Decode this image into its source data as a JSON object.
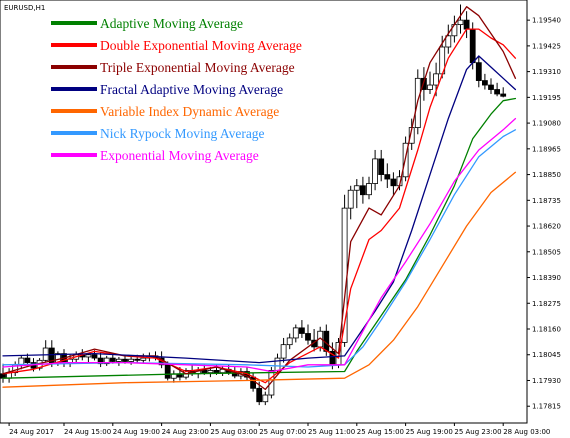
{
  "symbol_label": "EURUSD,H1",
  "chart_data": {
    "type": "candlestick",
    "symbol": "EURUSD,H1",
    "ylim": [
      1.1774,
      1.1963
    ],
    "y_ticks": [
      "1.19540",
      "1.19425",
      "1.19310",
      "1.19195",
      "1.19080",
      "1.18965",
      "1.18850",
      "1.18735",
      "1.18620",
      "1.18505",
      "1.18390",
      "1.18275",
      "1.18160",
      "1.18045",
      "1.17930",
      "1.17815"
    ],
    "x_ticks": [
      "24 Aug 2017",
      "24 Aug 15:00",
      "24 Aug 19:00",
      "24 Aug 23:00",
      "25 Aug 03:00",
      "25 Aug 07:00",
      "25 Aug 11:00",
      "25 Aug 15:00",
      "25 Aug 19:00",
      "25 Aug 23:00",
      "28 Aug 03:00"
    ],
    "x_tick_index": [
      1,
      10,
      18,
      26,
      34,
      42,
      50,
      58,
      66,
      74,
      82
    ],
    "candles": [
      {
        "o": 1.1796,
        "h": 1.18005,
        "l": 1.1792,
        "c": 1.1794
      },
      {
        "o": 1.1794,
        "h": 1.17985,
        "l": 1.1792,
        "c": 1.17965
      },
      {
        "o": 1.17965,
        "h": 1.18015,
        "l": 1.1795,
        "c": 1.18
      },
      {
        "o": 1.18,
        "h": 1.1804,
        "l": 1.1798,
        "c": 1.1803
      },
      {
        "o": 1.1803,
        "h": 1.1805,
        "l": 1.1799,
        "c": 1.1801
      },
      {
        "o": 1.1801,
        "h": 1.1803,
        "l": 1.1797,
        "c": 1.17985
      },
      {
        "o": 1.17985,
        "h": 1.1803,
        "l": 1.17975,
        "c": 1.1802
      },
      {
        "o": 1.1802,
        "h": 1.1811,
        "l": 1.1801,
        "c": 1.18075
      },
      {
        "o": 1.18075,
        "h": 1.1811,
        "l": 1.1799,
        "c": 1.1801
      },
      {
        "o": 1.1801,
        "h": 1.1806,
        "l": 1.17995,
        "c": 1.1805
      },
      {
        "o": 1.1805,
        "h": 1.1807,
        "l": 1.1799,
        "c": 1.1801
      },
      {
        "o": 1.1801,
        "h": 1.18045,
        "l": 1.1799,
        "c": 1.18025
      },
      {
        "o": 1.18025,
        "h": 1.1806,
        "l": 1.1801,
        "c": 1.18045
      },
      {
        "o": 1.18045,
        "h": 1.1807,
        "l": 1.1802,
        "c": 1.18035
      },
      {
        "o": 1.18035,
        "h": 1.18055,
        "l": 1.1801,
        "c": 1.18045
      },
      {
        "o": 1.18045,
        "h": 1.18065,
        "l": 1.1802,
        "c": 1.1803
      },
      {
        "o": 1.1803,
        "h": 1.18055,
        "l": 1.1799,
        "c": 1.18005
      },
      {
        "o": 1.18005,
        "h": 1.1804,
        "l": 1.17995,
        "c": 1.1803
      },
      {
        "o": 1.1803,
        "h": 1.18045,
        "l": 1.18005,
        "c": 1.18015
      },
      {
        "o": 1.18015,
        "h": 1.18035,
        "l": 1.17995,
        "c": 1.18025
      },
      {
        "o": 1.18025,
        "h": 1.18045,
        "l": 1.18005,
        "c": 1.18015
      },
      {
        "o": 1.18015,
        "h": 1.1804,
        "l": 1.18,
        "c": 1.18025
      },
      {
        "o": 1.18025,
        "h": 1.18045,
        "l": 1.1801,
        "c": 1.1802
      },
      {
        "o": 1.1802,
        "h": 1.1805,
        "l": 1.18005,
        "c": 1.1803
      },
      {
        "o": 1.1803,
        "h": 1.18055,
        "l": 1.18015,
        "c": 1.1804
      },
      {
        "o": 1.1804,
        "h": 1.1806,
        "l": 1.1802,
        "c": 1.1803
      },
      {
        "o": 1.1803,
        "h": 1.1806,
        "l": 1.17985,
        "c": 1.18
      },
      {
        "o": 1.18,
        "h": 1.18015,
        "l": 1.1793,
        "c": 1.1794
      },
      {
        "o": 1.1794,
        "h": 1.17975,
        "l": 1.1792,
        "c": 1.1796
      },
      {
        "o": 1.1796,
        "h": 1.1799,
        "l": 1.1793,
        "c": 1.17945
      },
      {
        "o": 1.17945,
        "h": 1.17985,
        "l": 1.17935,
        "c": 1.17975
      },
      {
        "o": 1.17975,
        "h": 1.18,
        "l": 1.1795,
        "c": 1.1796
      },
      {
        "o": 1.1796,
        "h": 1.1799,
        "l": 1.1794,
        "c": 1.17975
      },
      {
        "o": 1.17975,
        "h": 1.18,
        "l": 1.17955,
        "c": 1.17965
      },
      {
        "o": 1.17965,
        "h": 1.1799,
        "l": 1.17945,
        "c": 1.17975
      },
      {
        "o": 1.17975,
        "h": 1.18,
        "l": 1.17955,
        "c": 1.17965
      },
      {
        "o": 1.17965,
        "h": 1.17995,
        "l": 1.1795,
        "c": 1.1798
      },
      {
        "o": 1.1798,
        "h": 1.18,
        "l": 1.17955,
        "c": 1.17965
      },
      {
        "o": 1.17965,
        "h": 1.1799,
        "l": 1.1794,
        "c": 1.1795
      },
      {
        "o": 1.1795,
        "h": 1.17985,
        "l": 1.17935,
        "c": 1.1797
      },
      {
        "o": 1.1797,
        "h": 1.1799,
        "l": 1.1793,
        "c": 1.17945
      },
      {
        "o": 1.17945,
        "h": 1.17965,
        "l": 1.1788,
        "c": 1.17895
      },
      {
        "o": 1.17895,
        "h": 1.17925,
        "l": 1.1782,
        "c": 1.17835
      },
      {
        "o": 1.17835,
        "h": 1.1788,
        "l": 1.1782,
        "c": 1.17865
      },
      {
        "o": 1.17865,
        "h": 1.1799,
        "l": 1.1785,
        "c": 1.17975
      },
      {
        "o": 1.17975,
        "h": 1.1805,
        "l": 1.1796,
        "c": 1.1803
      },
      {
        "o": 1.1803,
        "h": 1.1812,
        "l": 1.1801,
        "c": 1.1809
      },
      {
        "o": 1.1809,
        "h": 1.1814,
        "l": 1.1807,
        "c": 1.1812
      },
      {
        "o": 1.1812,
        "h": 1.1818,
        "l": 1.181,
        "c": 1.18165
      },
      {
        "o": 1.18165,
        "h": 1.182,
        "l": 1.1812,
        "c": 1.1814
      },
      {
        "o": 1.1814,
        "h": 1.1818,
        "l": 1.1809,
        "c": 1.1811
      },
      {
        "o": 1.1811,
        "h": 1.1816,
        "l": 1.1806,
        "c": 1.1808
      },
      {
        "o": 1.1808,
        "h": 1.1817,
        "l": 1.1806,
        "c": 1.1815
      },
      {
        "o": 1.1815,
        "h": 1.1818,
        "l": 1.1804,
        "c": 1.1806
      },
      {
        "o": 1.1806,
        "h": 1.181,
        "l": 1.1798,
        "c": 1.18
      },
      {
        "o": 1.18,
        "h": 1.1812,
        "l": 1.17985,
        "c": 1.181
      },
      {
        "o": 1.181,
        "h": 1.1876,
        "l": 1.1808,
        "c": 1.187
      },
      {
        "o": 1.187,
        "h": 1.188,
        "l": 1.1865,
        "c": 1.1878
      },
      {
        "o": 1.1878,
        "h": 1.1883,
        "l": 1.187,
        "c": 1.188
      },
      {
        "o": 1.188,
        "h": 1.1884,
        "l": 1.1872,
        "c": 1.1876
      },
      {
        "o": 1.1876,
        "h": 1.1884,
        "l": 1.1874,
        "c": 1.1881
      },
      {
        "o": 1.1881,
        "h": 1.1896,
        "l": 1.1878,
        "c": 1.1892
      },
      {
        "o": 1.1892,
        "h": 1.1896,
        "l": 1.1882,
        "c": 1.1885
      },
      {
        "o": 1.1885,
        "h": 1.189,
        "l": 1.1879,
        "c": 1.1883
      },
      {
        "o": 1.1883,
        "h": 1.1886,
        "l": 1.1876,
        "c": 1.188
      },
      {
        "o": 1.188,
        "h": 1.1887,
        "l": 1.1878,
        "c": 1.1884
      },
      {
        "o": 1.1884,
        "h": 1.1902,
        "l": 1.1882,
        "c": 1.1899
      },
      {
        "o": 1.1899,
        "h": 1.191,
        "l": 1.1896,
        "c": 1.1906
      },
      {
        "o": 1.1906,
        "h": 1.1932,
        "l": 1.1903,
        "c": 1.1928
      },
      {
        "o": 1.1928,
        "h": 1.1933,
        "l": 1.1918,
        "c": 1.1923
      },
      {
        "o": 1.1923,
        "h": 1.1931,
        "l": 1.1921,
        "c": 1.1925
      },
      {
        "o": 1.1925,
        "h": 1.1935,
        "l": 1.192,
        "c": 1.193
      },
      {
        "o": 1.193,
        "h": 1.1947,
        "l": 1.1928,
        "c": 1.1942
      },
      {
        "o": 1.1942,
        "h": 1.1952,
        "l": 1.1939,
        "c": 1.1947
      },
      {
        "o": 1.1947,
        "h": 1.1956,
        "l": 1.1944,
        "c": 1.1952
      },
      {
        "o": 1.1952,
        "h": 1.1961,
        "l": 1.1948,
        "c": 1.1954
      },
      {
        "o": 1.1954,
        "h": 1.1958,
        "l": 1.1946,
        "c": 1.195
      },
      {
        "o": 1.195,
        "h": 1.1953,
        "l": 1.1932,
        "c": 1.1935
      },
      {
        "o": 1.1935,
        "h": 1.1938,
        "l": 1.1924,
        "c": 1.1927
      },
      {
        "o": 1.1927,
        "h": 1.193,
        "l": 1.1923,
        "c": 1.1925
      },
      {
        "o": 1.1925,
        "h": 1.1928,
        "l": 1.1921,
        "c": 1.1923
      },
      {
        "o": 1.1923,
        "h": 1.1926,
        "l": 1.192,
        "c": 1.1921
      },
      {
        "o": 1.1921,
        "h": 1.1924,
        "l": 1.19195,
        "c": 1.192
      }
    ],
    "series": [
      {
        "name": "Adaptive Moving Average",
        "color": "#008000",
        "width": 1.3,
        "points": [
          [
            0,
            1.1794
          ],
          [
            30,
            1.1796
          ],
          [
            56,
            1.1797
          ],
          [
            58,
            1.1806
          ],
          [
            62,
            1.1822
          ],
          [
            66,
            1.1838
          ],
          [
            70,
            1.1858
          ],
          [
            74,
            1.188
          ],
          [
            77,
            1.1901
          ],
          [
            80,
            1.1912
          ],
          [
            82,
            1.1918
          ],
          [
            84,
            1.1919
          ]
        ]
      },
      {
        "name": "Double Exponential Moving Average",
        "color": "#ff0000",
        "width": 1.3,
        "points": [
          [
            0,
            1.1796
          ],
          [
            5,
            1.1798
          ],
          [
            10,
            1.1802
          ],
          [
            15,
            1.1806
          ],
          [
            20,
            1.1804
          ],
          [
            25,
            1.1803
          ],
          [
            30,
            1.1797
          ],
          [
            35,
            1.1799
          ],
          [
            40,
            1.1796
          ],
          [
            43,
            1.1792
          ],
          [
            47,
            1.1801
          ],
          [
            52,
            1.1808
          ],
          [
            55,
            1.1803
          ],
          [
            57,
            1.1834
          ],
          [
            60,
            1.1856
          ],
          [
            62,
            1.186
          ],
          [
            65,
            1.187
          ],
          [
            68,
            1.1896
          ],
          [
            70,
            1.1915
          ],
          [
            73,
            1.1937
          ],
          [
            76,
            1.195
          ],
          [
            78,
            1.195
          ],
          [
            80,
            1.1946
          ],
          [
            82,
            1.1943
          ],
          [
            84,
            1.1937
          ]
        ]
      },
      {
        "name": "Triple Exponential Moving Average",
        "color": "#8b0000",
        "width": 1.3,
        "points": [
          [
            0,
            1.1796
          ],
          [
            5,
            1.18
          ],
          [
            10,
            1.1803
          ],
          [
            15,
            1.1807
          ],
          [
            20,
            1.1804
          ],
          [
            25,
            1.1804
          ],
          [
            30,
            1.1796
          ],
          [
            35,
            1.1799
          ],
          [
            40,
            1.1795
          ],
          [
            43,
            1.1789
          ],
          [
            47,
            1.1802
          ],
          [
            52,
            1.1812
          ],
          [
            55,
            1.1805
          ],
          [
            57,
            1.1855
          ],
          [
            60,
            1.187
          ],
          [
            62,
            1.1867
          ],
          [
            65,
            1.188
          ],
          [
            68,
            1.1918
          ],
          [
            70,
            1.1935
          ],
          [
            73,
            1.1948
          ],
          [
            76,
            1.196
          ],
          [
            78,
            1.1956
          ],
          [
            80,
            1.1948
          ],
          [
            82,
            1.194
          ],
          [
            84,
            1.1928
          ]
        ]
      },
      {
        "name": "Fractal Adaptive Moving Average",
        "color": "#000080",
        "width": 1.3,
        "points": [
          [
            0,
            1.1804
          ],
          [
            15,
            1.1805
          ],
          [
            30,
            1.1803
          ],
          [
            42,
            1.1801
          ],
          [
            50,
            1.1803
          ],
          [
            56,
            1.1804
          ],
          [
            58,
            1.1812
          ],
          [
            61,
            1.1824
          ],
          [
            64,
            1.1837
          ],
          [
            67,
            1.186
          ],
          [
            70,
            1.1885
          ],
          [
            73,
            1.191
          ],
          [
            76,
            1.1932
          ],
          [
            78,
            1.1938
          ],
          [
            80,
            1.1933
          ],
          [
            82,
            1.1928
          ],
          [
            84,
            1.1923
          ]
        ]
      },
      {
        "name": "Variable Index Dynamic Average",
        "color": "#ff6600",
        "width": 1.3,
        "points": [
          [
            0,
            1.179
          ],
          [
            20,
            1.1792
          ],
          [
            40,
            1.1793
          ],
          [
            56,
            1.1794
          ],
          [
            60,
            1.18
          ],
          [
            64,
            1.1811
          ],
          [
            68,
            1.1826
          ],
          [
            72,
            1.1844
          ],
          [
            76,
            1.1862
          ],
          [
            80,
            1.1877
          ],
          [
            84,
            1.1886
          ]
        ]
      },
      {
        "name": "Nick Rypock Moving Average",
        "color": "#3399ff",
        "width": 1.3,
        "points": [
          [
            0,
            1.18
          ],
          [
            20,
            1.1801
          ],
          [
            40,
            1.18
          ],
          [
            50,
            1.1799
          ],
          [
            56,
            1.18
          ],
          [
            59,
            1.1808
          ],
          [
            62,
            1.182
          ],
          [
            66,
            1.1837
          ],
          [
            70,
            1.1856
          ],
          [
            74,
            1.1876
          ],
          [
            78,
            1.1893
          ],
          [
            82,
            1.1902
          ],
          [
            84,
            1.1905
          ]
        ]
      },
      {
        "name": "Exponential Moving Average",
        "color": "#ff00ff",
        "width": 1.3,
        "points": [
          [
            0,
            1.1799
          ],
          [
            10,
            1.1801
          ],
          [
            20,
            1.1801
          ],
          [
            30,
            1.18
          ],
          [
            40,
            1.1799
          ],
          [
            44,
            1.1797
          ],
          [
            50,
            1.18
          ],
          [
            56,
            1.18
          ],
          [
            59,
            1.1815
          ],
          [
            62,
            1.183
          ],
          [
            66,
            1.1846
          ],
          [
            70,
            1.1863
          ],
          [
            74,
            1.1882
          ],
          [
            78,
            1.1896
          ],
          [
            82,
            1.1905
          ],
          [
            84,
            1.191
          ]
        ]
      }
    ]
  }
}
